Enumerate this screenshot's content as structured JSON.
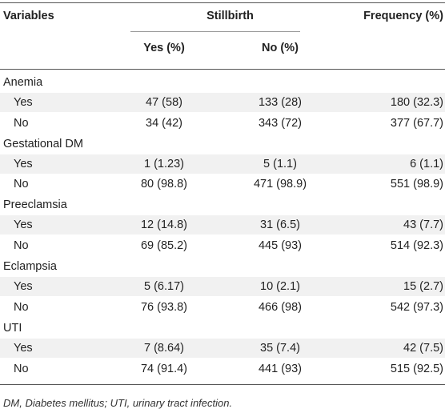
{
  "header": {
    "variables": "Variables",
    "stillbirth": "Stillbirth",
    "frequency": "Frequency (%)",
    "yes_col": "Yes (%)",
    "no_col": "No (%)"
  },
  "groups": [
    {
      "name": "Anemia",
      "rows": [
        {
          "label": "Yes",
          "yes": "47 (58)",
          "no": "133 (28)",
          "freq": "180 (32.3)"
        },
        {
          "label": "No",
          "yes": "34 (42)",
          "no": "343 (72)",
          "freq": "377 (67.7)"
        }
      ]
    },
    {
      "name": "Gestational DM",
      "rows": [
        {
          "label": "Yes",
          "yes": "1 (1.23)",
          "no": "5 (1.1)",
          "freq": "6 (1.1)"
        },
        {
          "label": "No",
          "yes": "80 (98.8)",
          "no": "471 (98.9)",
          "freq": "551 (98.9)"
        }
      ]
    },
    {
      "name": "Preeclamsia",
      "rows": [
        {
          "label": "Yes",
          "yes": "12 (14.8)",
          "no": "31 (6.5)",
          "freq": "43 (7.7)"
        },
        {
          "label": "No",
          "yes": "69 (85.2)",
          "no": "445 (93)",
          "freq": "514 (92.3)"
        }
      ]
    },
    {
      "name": "Eclampsia",
      "rows": [
        {
          "label": "Yes",
          "yes": "5 (6.17)",
          "no": "10 (2.1)",
          "freq": "15 (2.7)"
        },
        {
          "label": "No",
          "yes": "76 (93.8)",
          "no": "466 (98)",
          "freq": "542 (97.3)"
        }
      ]
    },
    {
      "name": "UTI",
      "rows": [
        {
          "label": "Yes",
          "yes": "7 (8.64)",
          "no": "35 (7.4)",
          "freq": "42 (7.5)"
        },
        {
          "label": "No",
          "yes": "74 (91.4)",
          "no": "441 (93)",
          "freq": "515 (92.5)"
        }
      ]
    }
  ],
  "footnote": "DM, Diabetes mellitus; UTI, urinary tract infection."
}
